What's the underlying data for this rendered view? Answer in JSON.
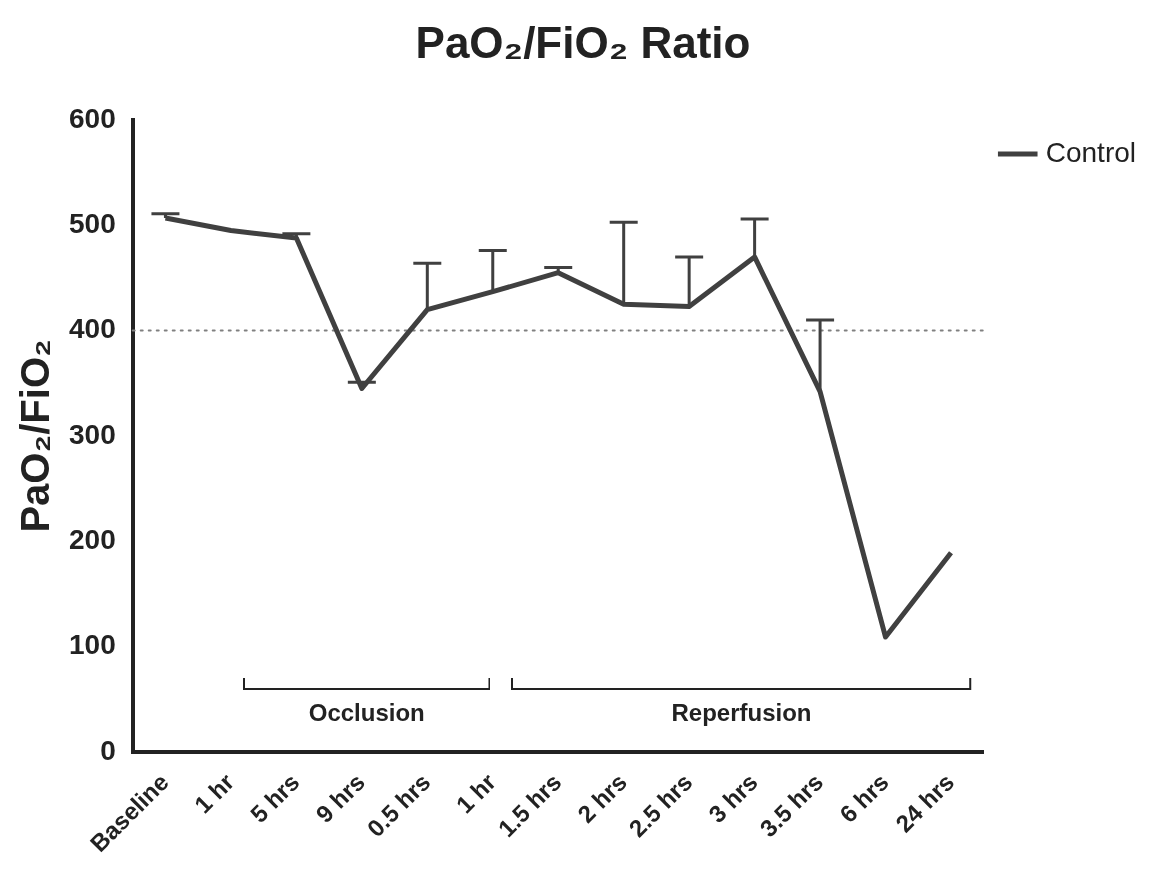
{
  "chart_data": {
    "type": "line",
    "title": "PaO₂/FiO₂ Ratio",
    "ylabel": "PaO₂/FiO₂",
    "categories": [
      "Baseline",
      "1 hr",
      "5 hrs",
      "9 hrs",
      "0.5 hrs",
      "1 hr",
      "1.5 hrs",
      "2 hrs",
      "2.5 hrs",
      "3 hrs",
      "3.5 hrs",
      "6 hrs",
      "24 hrs"
    ],
    "series": [
      {
        "name": "Control",
        "color": "#404040",
        "values": [
          507,
          495,
          488,
          345,
          420,
          437,
          455,
          425,
          423,
          470,
          342,
          109,
          189
        ],
        "errors": [
          [
            507,
            511
          ],
          null,
          [
            488,
            492
          ],
          [
            345,
            351
          ],
          [
            420,
            464
          ],
          [
            437,
            476
          ],
          [
            455,
            460
          ],
          [
            425,
            503
          ],
          [
            423,
            470
          ],
          [
            470,
            506
          ],
          [
            342,
            410
          ],
          null,
          null
        ]
      }
    ],
    "ylim": [
      0,
      600
    ],
    "yticks": [
      0,
      100,
      200,
      300,
      400,
      500,
      600
    ],
    "ref_lines": [
      {
        "axis": "y",
        "value": 400,
        "color": "#808080",
        "line_style": "dotted"
      }
    ],
    "annotations": [
      "Occlusion",
      "Reperfusion"
    ],
    "legend": "right",
    "grid": false,
    "marker": "none",
    "line_style": "solid"
  }
}
